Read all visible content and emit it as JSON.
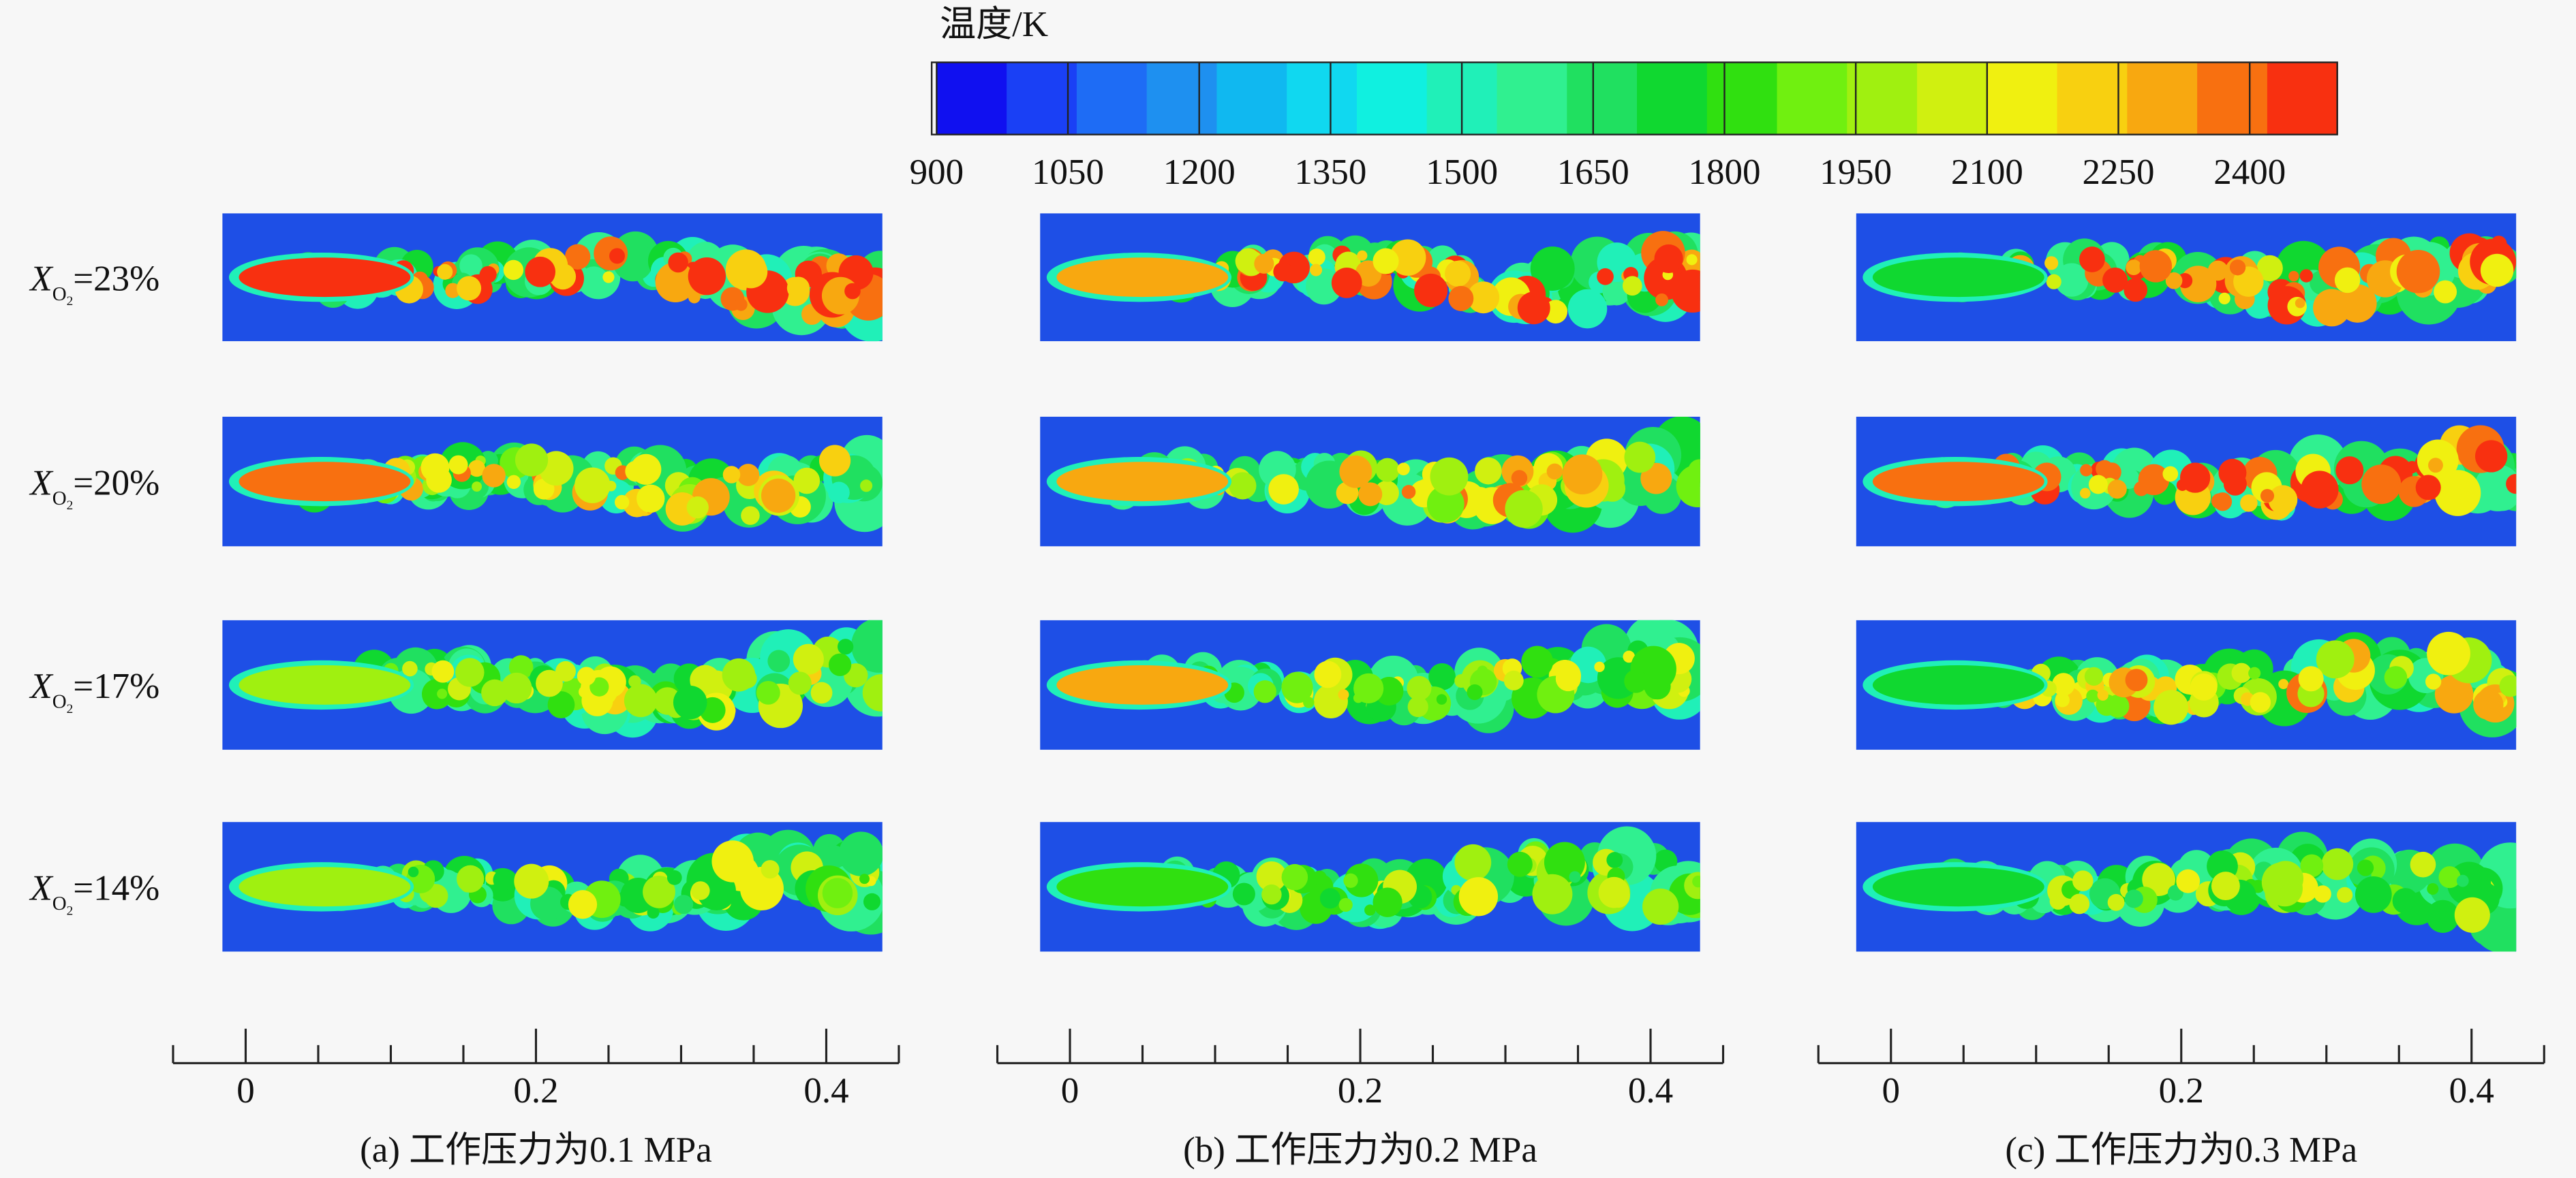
{
  "colorbar": {
    "title": "温度/K",
    "lim": [
      900,
      2500
    ],
    "ticks": [
      900,
      1050,
      1200,
      1350,
      1500,
      1650,
      1800,
      1950,
      2100,
      2250,
      2400
    ],
    "colors": [
      "#1010f0",
      "#1a40f5",
      "#1e6cf5",
      "#1e90f0",
      "#10b8f0",
      "#10d8f0",
      "#10f0e0",
      "#20f0b8",
      "#30f090",
      "#20e060",
      "#10d830",
      "#30e010",
      "#70f010",
      "#a0f010",
      "#d0f010",
      "#f0f010",
      "#f8d010",
      "#f8a810",
      "#f87010",
      "#f83010"
    ]
  },
  "rows": [
    {
      "symbol": "X",
      "subscript": "O",
      "subscript2": "2",
      "value": "=23%"
    },
    {
      "symbol": "X",
      "subscript": "O",
      "subscript2": "2",
      "value": "=20%"
    },
    {
      "symbol": "X",
      "subscript": "O",
      "subscript2": "2",
      "value": "=17%"
    },
    {
      "symbol": "X",
      "subscript": "O",
      "subscript2": "2",
      "value": "=14%"
    }
  ],
  "panels": [
    {
      "caption": "(a) 工作压力为0.1 MPa",
      "xlim": [
        -0.05,
        0.45
      ],
      "xticks": [
        0,
        0.2,
        0.4
      ],
      "xminor": [
        -0.05,
        0.05,
        0.1,
        0.15,
        0.25,
        0.3,
        0.35,
        0.45
      ]
    },
    {
      "caption": "(b) 工作压力为0.2 MPa",
      "xlim": [
        -0.05,
        0.45
      ],
      "xticks": [
        0,
        0.2,
        0.4
      ],
      "xminor": [
        -0.05,
        0.05,
        0.1,
        0.15,
        0.25,
        0.3,
        0.35,
        0.45
      ]
    },
    {
      "caption": "(c) 工作压力为0.3 MPa",
      "xlim": [
        -0.05,
        0.45
      ],
      "xticks": [
        0,
        0.2,
        0.4
      ],
      "xminor": [
        -0.05,
        0.05,
        0.1,
        0.15,
        0.25,
        0.3,
        0.35,
        0.45
      ]
    }
  ]
}
